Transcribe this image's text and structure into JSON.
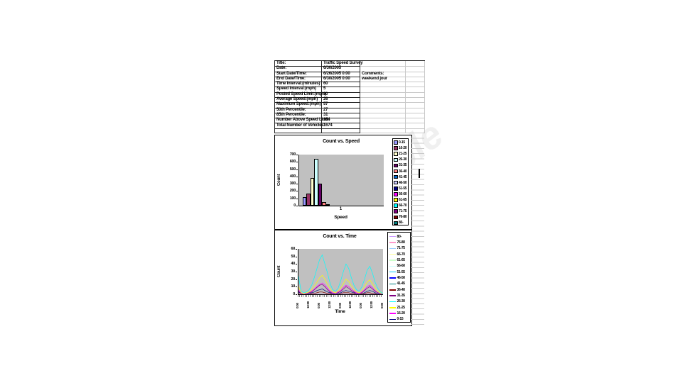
{
  "sheet": {
    "table": {
      "rows": [
        {
          "label": "Title:",
          "value": "Traffic Speed Survey",
          "comment": ""
        },
        {
          "label": "Date:",
          "value": "6/30/2005",
          "comment": ""
        },
        {
          "label": "Start Date/Time:",
          "value": "6/26/2005 0:00",
          "comment": "Comments:"
        },
        {
          "label": "End Date/Time:",
          "value": "6/30/2005 0:00",
          "comment": "weekend jour"
        },
        {
          "label": "Time Interval:(minutes)",
          "value": "60",
          "comment": ""
        },
        {
          "label": "Speed Interval:(mph)",
          "value": "5",
          "comment": ""
        },
        {
          "label": "Posted Speed Limit:(mph)",
          "value": "30",
          "comment": ""
        },
        {
          "label": "Average Speed:(mph)",
          "value": "26",
          "comment": ""
        },
        {
          "label": "Maximum Speed:(mph)",
          "value": "57",
          "comment": ""
        },
        {
          "label": "50th Percentile:",
          "value": "27",
          "comment": ""
        },
        {
          "label": "85th Percentile:",
          "value": "31",
          "comment": ""
        },
        {
          "label": "Number Above Speed Limit:",
          "value": "354",
          "comment": ""
        },
        {
          "label": "Total Number of Vehicles:",
          "value": "1674",
          "comment": ""
        },
        {
          "label": "",
          "value": "",
          "comment": ""
        }
      ]
    }
  },
  "colors": {
    "plot_bg": "#C0C0C0",
    "grid_line": "#C9C9C9",
    "border": "#000000"
  },
  "watermark": "Sample",
  "chart_data": [
    {
      "type": "bar",
      "title": "Count vs. Speed",
      "xlabel": "Speed",
      "ylabel": "Count",
      "categories": [
        "1"
      ],
      "ylim": [
        0,
        700
      ],
      "yticks": [
        0,
        100,
        200,
        300,
        400,
        500,
        600,
        700
      ],
      "legend_position": "right",
      "grid": false,
      "series": [
        {
          "name": "0-15",
          "color": "#9999FF",
          "value": 120
        },
        {
          "name": "16-20",
          "color": "#993366",
          "value": 170
        },
        {
          "name": "21-25",
          "color": "#FFFFCC",
          "value": 380
        },
        {
          "name": "26-30",
          "color": "#CCFFFF",
          "value": 640
        },
        {
          "name": "31-35",
          "color": "#660066",
          "value": 300
        },
        {
          "name": "36-40",
          "color": "#FF8080",
          "value": 50
        },
        {
          "name": "41-45",
          "color": "#0066CC",
          "value": 10
        },
        {
          "name": "46-50",
          "color": "#CCCCFF",
          "value": 0
        },
        {
          "name": "51-55",
          "color": "#000080",
          "value": 0
        },
        {
          "name": "56-60",
          "color": "#FF00FF",
          "value": 0
        },
        {
          "name": "61-65",
          "color": "#FFFF00",
          "value": 0
        },
        {
          "name": "66-70",
          "color": "#00FFFF",
          "value": 0
        },
        {
          "name": "71-75",
          "color": "#800080",
          "value": 0
        },
        {
          "name": "76-80",
          "color": "#800000",
          "value": 0
        },
        {
          "name": "80-",
          "color": "#008080",
          "value": 0
        }
      ]
    },
    {
      "type": "line",
      "title": "Count vs. Time",
      "xlabel": "Time",
      "ylabel": "Count",
      "ylim": [
        0,
        60
      ],
      "yticks": [
        0,
        10,
        20,
        30,
        40,
        50,
        60
      ],
      "x_hours_span": 96,
      "x_point_step_hours": 3,
      "xticklabels": [
        "0:00",
        "12:00",
        "0:00",
        "12:00",
        "0:00",
        "12:00",
        "0:00",
        "12:00",
        "0:00"
      ],
      "legend_position": "right",
      "legend_order": "reversed",
      "grid": false,
      "series": [
        {
          "name": "0-15",
          "color": "#000080",
          "values": [
            3,
            1,
            0,
            0,
            1,
            2,
            3,
            5,
            6,
            7,
            5,
            3,
            2,
            1,
            0,
            1,
            2,
            4,
            5,
            4,
            3,
            2,
            1,
            0,
            1,
            2,
            4,
            5,
            4,
            2,
            1,
            0,
            0
          ]
        },
        {
          "name": "16-20",
          "color": "#FF00FF",
          "values": [
            6,
            1,
            1,
            1,
            2,
            4,
            7,
            10,
            13,
            15,
            12,
            8,
            4,
            2,
            1,
            3,
            5,
            9,
            12,
            10,
            7,
            4,
            2,
            1,
            3,
            6,
            10,
            12,
            9,
            5,
            2,
            1,
            0
          ]
        },
        {
          "name": "21-25",
          "color": "#FFFF00",
          "values": [
            10,
            2,
            1,
            2,
            3,
            6,
            11,
            16,
            22,
            25,
            20,
            13,
            7,
            3,
            2,
            4,
            8,
            14,
            20,
            17,
            11,
            6,
            3,
            2,
            5,
            10,
            16,
            19,
            14,
            8,
            4,
            2,
            1
          ]
        },
        {
          "name": "26-30",
          "color": "#00FFFF",
          "values": [
            24,
            4,
            2,
            3,
            6,
            12,
            22,
            34,
            46,
            52,
            40,
            28,
            14,
            6,
            4,
            8,
            18,
            30,
            40,
            34,
            22,
            12,
            6,
            4,
            10,
            20,
            32,
            37,
            28,
            16,
            8,
            3,
            1
          ]
        },
        {
          "name": "31-35",
          "color": "#800080",
          "values": [
            4,
            1,
            0,
            1,
            2,
            3,
            6,
            9,
            12,
            13,
            10,
            6,
            3,
            1,
            1,
            2,
            4,
            7,
            10,
            8,
            5,
            3,
            1,
            1,
            2,
            5,
            8,
            10,
            7,
            4,
            2,
            1,
            0
          ]
        },
        {
          "name": "36-40",
          "color": "#800000",
          "values": [
            1,
            0,
            0,
            0,
            0,
            1,
            1,
            2,
            3,
            3,
            2,
            1,
            1,
            0,
            0,
            0,
            1,
            2,
            2,
            2,
            1,
            1,
            0,
            0,
            1,
            1,
            2,
            2,
            1,
            1,
            0,
            0,
            0
          ]
        },
        {
          "name": "41-45",
          "color": "#008080",
          "values": [
            0,
            0
          ]
        },
        {
          "name": "46-50",
          "color": "#0000FF",
          "values": [
            0,
            0
          ]
        },
        {
          "name": "51-55",
          "color": "#00CCFF",
          "values": [
            0,
            0
          ]
        },
        {
          "name": "56-60",
          "color": "#CCFFFF",
          "values": [
            0,
            0
          ]
        },
        {
          "name": "61-65",
          "color": "#CCFFCC",
          "values": [
            0,
            0
          ]
        },
        {
          "name": "66-70",
          "color": "#FFFF99",
          "values": [
            0,
            0
          ]
        },
        {
          "name": "71-75",
          "color": "#99CCFF",
          "values": [
            0,
            0
          ]
        },
        {
          "name": "76-80",
          "color": "#FF99CC",
          "values": [
            0,
            0
          ]
        },
        {
          "name": "80-",
          "color": "#CC99FF",
          "values": [
            0,
            0
          ]
        }
      ]
    }
  ]
}
